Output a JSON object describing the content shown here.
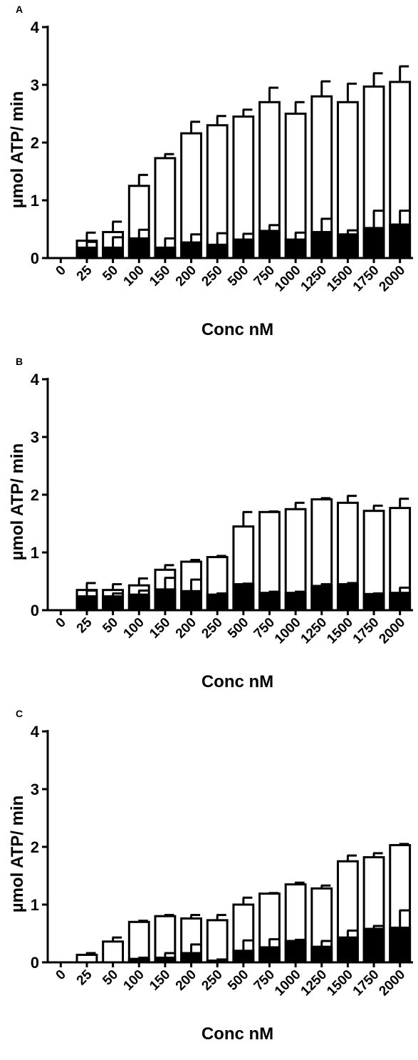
{
  "chart_data": [
    {
      "type": "bar",
      "panel": "A",
      "xlabel": "Conc nM",
      "ylabel": "µmol ATP/ min",
      "ylim": [
        0,
        4
      ],
      "yticks": [
        0,
        1,
        2,
        3,
        4
      ],
      "categories": [
        "0",
        "25",
        "50",
        "100",
        "150",
        "200",
        "250",
        "500",
        "750",
        "1000",
        "1250",
        "1500",
        "1750",
        "2000"
      ],
      "series": [
        {
          "color": "#ffffff",
          "values": [
            0,
            0.3,
            0.45,
            1.25,
            1.73,
            2.16,
            2.3,
            2.45,
            2.7,
            2.5,
            2.8,
            2.7,
            2.97,
            3.05
          ],
          "errors": [
            0,
            0.14,
            0.18,
            0.19,
            0.07,
            0.2,
            0.16,
            0.12,
            0.25,
            0.2,
            0.26,
            0.32,
            0.23,
            0.27
          ]
        },
        {
          "color": "#000000",
          "values": [
            0,
            0.18,
            0.18,
            0.34,
            0.18,
            0.27,
            0.23,
            0.32,
            0.47,
            0.32,
            0.45,
            0.41,
            0.52,
            0.58
          ],
          "errors": [
            0,
            0.1,
            0.18,
            0.15,
            0.16,
            0.14,
            0.2,
            0.1,
            0.1,
            0.12,
            0.23,
            0.07,
            0.3,
            0.24
          ]
        }
      ]
    },
    {
      "type": "bar",
      "panel": "B",
      "xlabel": "Conc nM",
      "ylabel": "µmol ATP/ min",
      "ylim": [
        0,
        4
      ],
      "yticks": [
        0,
        1,
        2,
        3,
        4
      ],
      "categories": [
        "0",
        "25",
        "50",
        "100",
        "150",
        "200",
        "250",
        "500",
        "750",
        "1000",
        "1250",
        "1500",
        "1750",
        "2000"
      ],
      "series": [
        {
          "color": "#ffffff",
          "values": [
            0,
            0.35,
            0.35,
            0.43,
            0.7,
            0.84,
            0.92,
            1.45,
            1.7,
            1.75,
            1.92,
            1.86,
            1.72,
            1.77
          ],
          "errors": [
            0,
            0.12,
            0.1,
            0.12,
            0.08,
            0.03,
            0.02,
            0.25,
            0.01,
            0.11,
            0.02,
            0.12,
            0.09,
            0.16
          ]
        },
        {
          "color": "#000000",
          "values": [
            0,
            0.24,
            0.24,
            0.27,
            0.36,
            0.33,
            0.27,
            0.45,
            0.3,
            0.3,
            0.42,
            0.45,
            0.28,
            0.3
          ],
          "errors": [
            0,
            0.1,
            0.05,
            0.07,
            0.2,
            0.2,
            0.02,
            0.01,
            0.02,
            0.02,
            0.03,
            0.02,
            0.01,
            0.09
          ]
        }
      ]
    },
    {
      "type": "bar",
      "panel": "C",
      "xlabel": "Conc nM",
      "ylabel": "µmol ATP/ min",
      "ylim": [
        0,
        4
      ],
      "yticks": [
        0,
        1,
        2,
        3,
        4
      ],
      "categories": [
        "0",
        "25",
        "50",
        "100",
        "150",
        "200",
        "250",
        "500",
        "750",
        "1000",
        "1250",
        "1500",
        "1750",
        "2000"
      ],
      "series": [
        {
          "color": "#ffffff",
          "values": [
            0,
            0.13,
            0.36,
            0.7,
            0.8,
            0.76,
            0.73,
            1.0,
            1.19,
            1.35,
            1.28,
            1.75,
            1.82,
            2.03
          ],
          "errors": [
            0,
            0.03,
            0.07,
            0.02,
            0.02,
            0.06,
            0.09,
            0.12,
            0.01,
            0.03,
            0.05,
            0.1,
            0.07,
            0.02
          ]
        },
        {
          "color": "#000000",
          "values": [
            0,
            0,
            0,
            0.06,
            0.08,
            0.16,
            0.03,
            0.2,
            0.26,
            0.37,
            0.27,
            0.43,
            0.58,
            0.6
          ],
          "errors": [
            0,
            0,
            0,
            0.02,
            0.08,
            0.15,
            0.02,
            0.18,
            0.14,
            0.02,
            0.1,
            0.12,
            0.05,
            0.3
          ]
        }
      ]
    }
  ]
}
